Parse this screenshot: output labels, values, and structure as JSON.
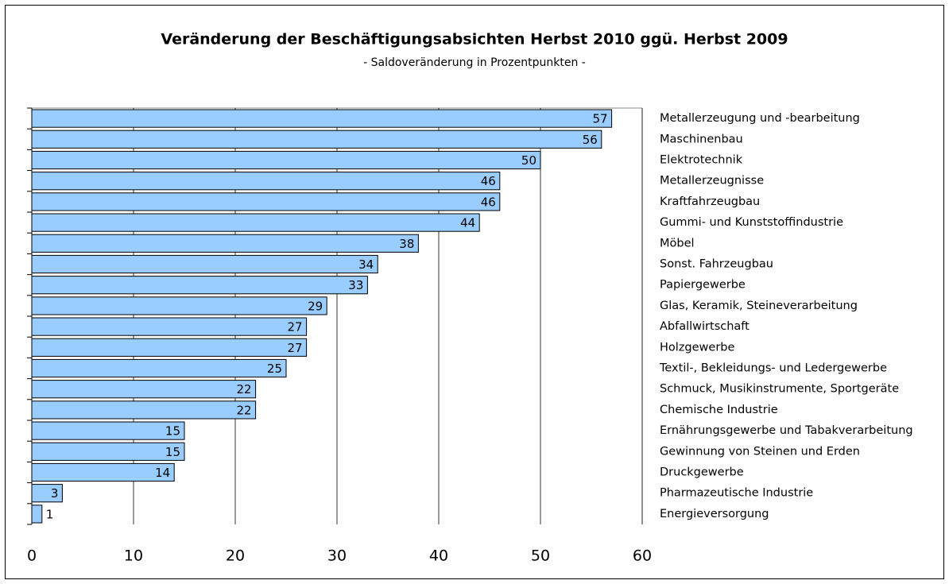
{
  "chart_data": {
    "type": "bar",
    "orientation": "horizontal",
    "title": "Veränderung der Beschäftigungsabsichten Herbst 2010 ggü. Herbst 2009",
    "subtitle": "- Saldoveränderung in Prozentpunkten -",
    "categories": [
      "Metallerzeugung und -bearbeitung",
      "Maschinenbau",
      "Elektrotechnik",
      "Metallerzeugnisse",
      "Kraftfahrzeugbau",
      "Gummi- und Kunststoffindustrie",
      "Möbel",
      "Sonst. Fahrzeugbau",
      "Papiergewerbe",
      "Glas, Keramik, Steineverarbeitung",
      "Abfallwirtschaft",
      "Holzgewerbe",
      "Textil-, Bekleidungs- und Ledergewerbe",
      "Schmuck, Musikinstrumente, Sportgeräte",
      "Chemische Industrie",
      "Ernährungsgewerbe und Tabakverarbeitung",
      "Gewinnung von Steinen und Erden",
      "Druckgewerbe",
      "Pharmazeutische Industrie",
      "Energieversorgung"
    ],
    "values": [
      57,
      56,
      50,
      46,
      46,
      44,
      38,
      34,
      33,
      29,
      27,
      27,
      25,
      22,
      22,
      15,
      15,
      14,
      3,
      1
    ],
    "color": "#99ccff",
    "xlim": [
      0,
      60
    ],
    "xticks": [
      0,
      10,
      20,
      30,
      40,
      50,
      60
    ],
    "grid": true
  }
}
